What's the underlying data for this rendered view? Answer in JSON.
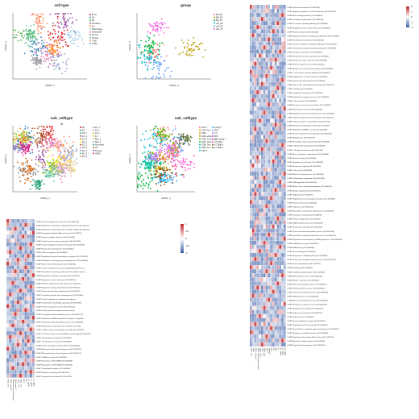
{
  "umaps": [
    {
      "id": "cell_type",
      "title": "cell type",
      "xlabel": "UMAP_1",
      "ylabel": "UMAP_2",
      "legend": [
        "B cell",
        "DC",
        "EC",
        "Fibroblast",
        "ILC",
        "Macrophage",
        "Neutrophils",
        "NK cell",
        "Pericyte",
        "T cell",
        "VSMC"
      ],
      "colors": [
        "#e41a1c",
        "#377eb8",
        "#4daf4a",
        "#984ea3",
        "#ff7f00",
        "#a6cee3",
        "#f781bf",
        "#999999",
        "#66c2a5",
        "#fc8d62",
        "#8da0cb"
      ]
    },
    {
      "id": "group",
      "title": "group",
      "xlabel": "UMAP_1",
      "ylabel": "UMAP_2",
      "legend": [
        "BM_D0",
        "BM_D3",
        "BM_D7",
        "cLN_D0",
        "cLN_D3",
        "cLN_D7"
      ],
      "colors": [
        "#f8766d",
        "#b79f00",
        "#00ba38",
        "#00bfc4",
        "#619cff",
        "#f564e3"
      ]
    },
    {
      "id": "sub_celltype_a",
      "title": "sub_celltype",
      "subtitle": "a",
      "xlabel": "UMAP_1",
      "ylabel": "UMAP_2",
      "legend": [
        "B0_",
        "B1_",
        "DC_1",
        "DC_2",
        "DC_3",
        "EC_1",
        "EC_2",
        "EC_3",
        "EC_4",
        "EC_5",
        "EC_6",
        "EC_7",
        "Fb_1",
        "Fb_2",
        "ILC",
        "Mac_1",
        "Mac_2",
        "Neutrophil",
        "NK",
        "Pericyte",
        "VSMC"
      ],
      "colors": [
        "#e41a1c",
        "#377eb8",
        "#4daf4a",
        "#984ea3",
        "#ff7f00",
        "#ffff33",
        "#a65628",
        "#f781bf",
        "#999999",
        "#66c2a5",
        "#fc8d62",
        "#8da0cb",
        "#e78ac3",
        "#a6d854",
        "#ffd92f",
        "#e5c494",
        "#b3b3b3",
        "#1b9e77",
        "#d95f02",
        "#7570b3",
        "#e7298a"
      ]
    },
    {
      "id": "sub_celltype_t",
      "title": "sub_celltype",
      "xlabel": "UMAP_1",
      "ylabel": "UMAP_2",
      "legend": [
        "CD4 T",
        "CD4+ Tem",
        "CD8+",
        "CD8+ effector T",
        "CD8+ memory and cycling T",
        "CD8+ naive T",
        "CD8+ Tem",
        "CD8+ Trm",
        "CD8 T",
        "cycling T",
        "DNT",
        "ILC",
        "NKT",
        "pT",
        "pT Tgfb1+",
        "pT Tgfb3+",
        "pT Tgfb4+"
      ],
      "colors": [
        "#f8766d",
        "#e58700",
        "#c99800",
        "#a3a500",
        "#6bb100",
        "#00ba38",
        "#00bf7d",
        "#00c0af",
        "#00bcd8",
        "#00b0f6",
        "#619cff",
        "#b983ff",
        "#e76bf3",
        "#fd61d1",
        "#ff67a4",
        "#8b4513",
        "#556b2f"
      ]
    }
  ],
  "heatmap_left": {
    "colorbar": {
      "ticks": [
        "1",
        "0.5",
        "0",
        "-0.5",
        "-1"
      ],
      "low": "#3b5ea8",
      "mid": "#ffffff",
      "high": "#c1272d"
    },
    "rows": [
      "GOBP Positive regulation of ossification (GO:0045778)",
      "GOBP Regulation of membrane repolarization during action potential",
      "GOBP Regulation of cell proliferation involved in kidney development",
      "GOBP Neutrophil mediated killing of fungus (GO:0070947)",
      "GOBP Immune complex clearance (GO:0002434)",
      "GOBP Central nervous system maturation (GO:0021626)",
      "GOBP Positive regulation of fatty acid transport (GO:2000193)",
      "GOBP Neural retina development (GO:0003407)",
      "GOBP Glial cell migration (GO:0008347)",
      "GOBP Regulation of protein localization to synapse (GO:1902473)",
      "GOBP Embryonic camera-type eye morphogenesis (GO:0048596)",
      "GOBP Retinal rod cell development (GO:0046548)",
      "GOBP Positive regulation of vascular endothelial growth factor",
      "GOBP Nucleobase-containing small molecule catabolic process",
      "GOBP Regulation of synapse maturation (GO:0090128)",
      "GOBP Regulation of axon extension (GO:0030516)",
      "GOBP Negative regulation of gene expression, epigenetic",
      "GOBP Regulation of glial cell proliferation (GO:0060251)",
      "GOBP Skeletal muscle fiber development (GO:0048741)",
      "GOBP Cerebellar granular layer development (GO:0021681)",
      "GOBP Positive regulation of epithelial cell migration",
      "GOBP Determination of left/right symmetry (GO:0007368)",
      "GOBP Protein localization to cilium (GO:0061512)",
      "GOBP Protein-lysine N-methyltransferase activity",
      "GOBP Fat-soluble vitamin metabolic process (GO:0006775)",
      "GOBP Regulation of DNA-templated transcription, elongation",
      "GOBP Nucleotide-sugar biosynthetic process (GO:0009226)",
      "GOBP Mitochondrial respiratory chain complex assembly",
      "GOBP Cellular response to hydrogen peroxide (GO:0070301)",
      "GOBP Generation of precursor metabolites and energy (GO:0006091)",
      "GOBP Mitochondrial transport (GO:0006839)",
      "GOBP Tricarboxylic acid cycle (GO:0006099)",
      "GOBP Protein targeting to mitochondrion (GO:0006626)",
      "GOBP Ribosomal small subunit biogenesis (GO:0042274)",
      "GOBP Ribosomal large subunit biogenesis (GO:0042273)",
      "GOBP rRNA processing (GO:0006364)",
      "GOBP Maturation of SSU-rRNA (GO:0030490)",
      "GOBP Maturation of 5.8S rRNA (GO:0000460)",
      "GOBP Translational initiation (GO:0006413)",
      "GOBP Ribosome assembly (GO:0042255)",
      "GOBP Cytoplasmic translation (GO:0002181)"
    ],
    "columns": [
      "CD4+ Tem",
      "CD8+ effector T",
      "CD8+ memory and cycling T",
      "CD8+ naive T",
      "CD8+ Tem",
      "CD8+ Trm",
      "DNT",
      "NKT",
      "pT Tgfb1+",
      "pT Tgfb3+",
      "pT Tgfb4+"
    ]
  },
  "heatmap_right": {
    "colorbar": {
      "ticks": [
        "2",
        "1",
        "0",
        "-1",
        "-2"
      ],
      "low": "#3b5ea8",
      "mid": "#ffffff",
      "high": "#c1272d"
    },
    "rows": [
      "GOBP Histamine transport (GO:0051608)",
      "GOBP Negative regulation of cell-cell adhesion (GO:0022408)",
      "GOBP Mast cell degranulation (GO:0043303)",
      "GOBP Leukocyte degranulation (GO:0043299)",
      "GOBP Fc receptor signaling pathway (GO:0038093)",
      "GOBP Regulation of mast cell activation (GO:0033003)",
      "GOBP Platelet activation (GO:0030168)",
      "GOBP Negative regulation of leukocyte proliferation (GO:0070664)",
      "GOBP Interleukin-10 production (GO:0032613)",
      "GOBP Positive regulation of cytokine production (GO:0001819)",
      "GOBP Chemokine-mediated signaling pathway (GO:0070098)",
      "GOBP Leukocyte chemotaxis (GO:0030595)",
      "GOBP Response to interferon-gamma (GO:0034341)",
      "GOBP Response to type I interferon (GO:0034340)",
      "GOBP Defense response to virus (GO:0051607)",
      "GOBP Antigen processing and presentation (GO:0019882)",
      "GOBP T cell receptor signaling pathway (GO:0050852)",
      "GOBP Regulation of T cell activation (GO:0050863)",
      "GOBP Lymphocyte differentiation (GO:0030098)",
      "GOBP Natural killer cell mediated cytotoxicity (GO:0042267)",
      "GOBP Cell killing (GO:0001906)",
      "GOBP Interleukin-2 production (GO:0032623)",
      "GOBP Regulation of apoptotic process (GO:0042981)",
      "GOBP Cell chemotaxis (GO:0060326)",
      "GOBP Response to tumor necrosis factor (GO:0034612)",
      "GOBP Inflammatory response (GO:0006954)",
      "GOBP Regulation of immune effector process (GO:0002697)",
      "GOBP Cytokine-mediated signaling pathway (GO:0019221)",
      "GOBP Cellular response to interleukin-1 (GO:0071347)",
      "GOBP Response to lipopolysaccharide (GO:0032496)",
      "GOBP Regulation of MAPK cascade (GO:0043408)",
      "GOBP Positive regulation of cell migration (GO:0030335)",
      "GOBP Angiogenesis (GO:0001525)",
      "GOBP Extracellular matrix organization (GO:0030198)",
      "GOBP Collagen fibril organization (GO:0030199)",
      "GOBP Cell-substrate adhesion (GO:0031589)",
      "GOBP Actin cytoskeleton organization (GO:0030036)",
      "GOBP Wound healing (GO:0042060)",
      "GOBP Regulation of cell shape (GO:0008360)",
      "GOBP Response to hypoxia (GO:0001666)",
      "GOBP Cell cycle (GO:0007049)",
      "GOBP Mitotic cell cycle process (GO:1903047)",
      "GOBP Chromosome segregation (GO:0007059)",
      "GOBP DNA replication (GO:0006260)",
      "GOBP Mitotic sister chromatid segregation (GO:0000070)",
      "GOBP Spindle organization (GO:0007051)",
      "GOBP DNA repair (GO:0006281)",
      "GOBP Regulation of cell cycle phase transition (GO:1901987)",
      "GOBP Nuclear division (GO:0000280)",
      "GOBP Cytokinesis (GO:0000910)",
      "GOBP Microtubule cytoskeleton organization (GO:0000226)",
      "GOBP Chromatin remodeling (GO:0006338)",
      "GOBP Histone modification (GO:0016570)",
      "GOBP DNA metabolic process (GO:0006259)",
      "GOBP Nucleosome assembly (GO:0006334)",
      "GOBP Purine nucleotide biosynthetic process (GO:0006164)",
      "GOBP Pyrimidine nucleotide metabolic process (GO:0006220)",
      "GOBP Regulation of transcription by RNA polymerase II (GO:0006357)",
      "GOBP mRNA processing (GO:0006397)",
      "GOBP RNA splicing (GO:0008380)",
      "GOBP Protein folding (GO:0006457)",
      "GOBP Response to unfolded protein (GO:0006986)",
      "GOBP Proteasome-mediated catabolic process (GO:0043161)",
      "GOBP Protein ubiquitination (GO:0016567)",
      "GOBP Autophagy (GO:0006914)",
      "GOBP Oxidative phosphorylation (GO:0006119)",
      "GOBP ATP metabolic process (GO:0046034)",
      "GOBP Aerobic respiration (GO:0009060)",
      "GOBP Fatty acid metabolic process (GO:0006631)",
      "GOBP Lipid biosynthetic process (GO:0008610)",
      "GOBP Cholesterol metabolic process (GO:0008203)",
      "GOBP Glycolytic process (GO:0006096)",
      "GOBP Amino acid metabolic process (GO:0006520)",
      "GOBP Response to oxidative stress (GO:0006979)",
      "GOBP Regulation of translation (GO:0006417)",
      "GOBP Golgi vesicle transport (GO:0048193)",
      "GOBP Endocytosis (GO:0006897)",
      "GOBP Vesicle-mediated transport (GO:0016192)",
      "GOBP Regulation of GTPase activity (GO:0043087)",
      "GOBP Small GTPase mediated signal transduction (GO:0007264)",
      "GOBP Response to peptide hormone (GO:0043434)",
      "GOBP Regulation of leukocyte differentiation (GO:1902105)",
      "GOBP Myeloid cell differentiation (GO:0030099)",
      "GOBP Regulation of hemopoiesis (GO:1903706)"
    ],
    "columns": [
      "CD4+ Tem",
      "CD8+",
      "CD8+ effector T",
      "CD8+ memory and cycling T",
      "CD8+ naive T",
      "CD8+ Tem",
      "CD8+ Trm",
      "CD8 T",
      "cycling T",
      "DNT",
      "ILC",
      "NKT",
      "pT",
      "pT Tgfb1+",
      "pT Tgfb3+",
      "pT Tgfb4+"
    ]
  },
  "chart_data": [
    {
      "type": "scatter",
      "title": "cell type",
      "xlabel": "UMAP_1",
      "ylabel": "UMAP_2",
      "series": [
        {
          "name": "B cell"
        },
        {
          "name": "DC"
        },
        {
          "name": "EC"
        },
        {
          "name": "Fibroblast"
        },
        {
          "name": "ILC"
        },
        {
          "name": "Macrophage"
        },
        {
          "name": "Neutrophils"
        },
        {
          "name": "NK cell"
        },
        {
          "name": "Pericyte"
        },
        {
          "name": "T cell"
        },
        {
          "name": "VSMC"
        }
      ]
    },
    {
      "type": "scatter",
      "title": "group",
      "xlabel": "UMAP_1",
      "ylabel": "UMAP_2",
      "series": [
        {
          "name": "BM_D0"
        },
        {
          "name": "BM_D3"
        },
        {
          "name": "BM_D7"
        },
        {
          "name": "cLN_D0"
        },
        {
          "name": "cLN_D3"
        },
        {
          "name": "cLN_D7"
        }
      ]
    },
    {
      "type": "scatter",
      "title": "sub_celltype",
      "xlabel": "UMAP_1",
      "ylabel": "UMAP_2"
    },
    {
      "type": "scatter",
      "title": "sub_celltype",
      "xlabel": "UMAP_1",
      "ylabel": "UMAP_2"
    },
    {
      "type": "heatmap",
      "colorbar_range": [
        -1,
        1
      ]
    },
    {
      "type": "heatmap",
      "colorbar_range": [
        -2,
        2
      ]
    }
  ]
}
